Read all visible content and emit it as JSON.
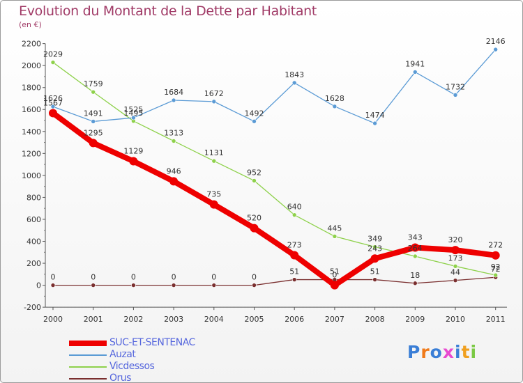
{
  "title": "Evolution du Montant de la Dette par Habitant",
  "subtitle": "(en €)",
  "logo": {
    "text": "Proxiti",
    "letter_colors": [
      "#3a7ed6",
      "#f07a1a",
      "#3a7ed6",
      "#e84ad0",
      "#3a7ed6",
      "#f0a020",
      "#7ac943"
    ]
  },
  "chart_data": {
    "type": "line",
    "x": [
      "2000",
      "2001",
      "2002",
      "2003",
      "2004",
      "2005",
      "2006",
      "2007",
      "2008",
      "2009",
      "2010",
      "2011"
    ],
    "y_ticks": [
      "-200",
      "0",
      "200",
      "400",
      "600",
      "800",
      "1000",
      "1200",
      "1400",
      "1600",
      "1800",
      "2000",
      "2200"
    ],
    "ylim": [
      -200,
      2200
    ],
    "grid": false,
    "legend_position": "bottom-left",
    "series": [
      {
        "name": "SUC-ET-SENTENAC",
        "color": "#ee0000",
        "values": [
          1567,
          1295,
          1129,
          946,
          735,
          520,
          273,
          0,
          243,
          343,
          320,
          272
        ],
        "labels": [
          "1567",
          "1295",
          "1129",
          "946",
          "735",
          "520",
          "273",
          "0",
          "243",
          "343",
          "320",
          "272"
        ]
      },
      {
        "name": "Auzat",
        "color": "#5b9bd5",
        "values": [
          1626,
          1491,
          1525,
          1684,
          1672,
          1492,
          1843,
          1628,
          1474,
          1941,
          1732,
          2146
        ],
        "labels": [
          "1626",
          "1491",
          "1525",
          "1684",
          "1672",
          "1492",
          "1843",
          "1628",
          "1474",
          "1941",
          "1732",
          "2146"
        ]
      },
      {
        "name": "Vicdessos",
        "color": "#8ed14b",
        "values": [
          2029,
          1759,
          1495,
          1313,
          1131,
          952,
          640,
          445,
          349,
          264,
          173,
          92
        ],
        "labels": [
          "2029",
          "1759",
          "1495",
          "1313",
          "1131",
          "952",
          "640",
          "445",
          "349",
          "264",
          "173",
          "92"
        ]
      },
      {
        "name": "Orus",
        "color": "#7a2f2f",
        "values": [
          0,
          0,
          0,
          0,
          0,
          0,
          51,
          51,
          51,
          18,
          44,
          72
        ],
        "labels": [
          "0",
          "0",
          "0",
          "0",
          "0",
          "0",
          "51",
          "51",
          "51",
          "18",
          "44",
          "72"
        ]
      }
    ]
  }
}
